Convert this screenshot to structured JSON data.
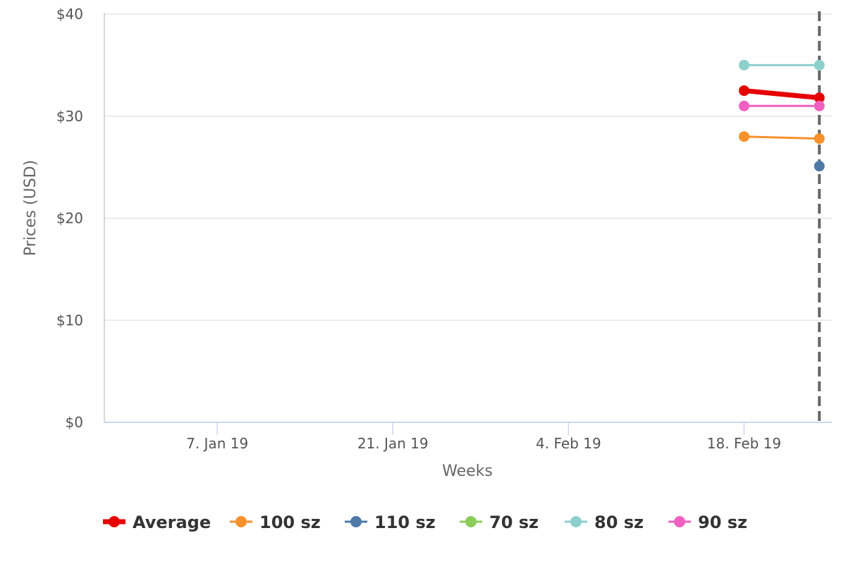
{
  "chart_data": {
    "type": "line",
    "title": "",
    "xlabel": "Weeks",
    "ylabel": "Prices (USD)",
    "x_ticks": [
      {
        "date": "2019-01-07",
        "label": "7. Jan 19"
      },
      {
        "date": "2019-01-21",
        "label": "21. Jan 19"
      },
      {
        "date": "2019-02-04",
        "label": "4. Feb 19"
      },
      {
        "date": "2019-02-18",
        "label": "18. Feb 19"
      }
    ],
    "y_ticks": [
      {
        "value": 0,
        "label": "$0"
      },
      {
        "value": 10,
        "label": "$10"
      },
      {
        "value": 20,
        "label": "$20"
      },
      {
        "value": 30,
        "label": "$30"
      },
      {
        "value": 40,
        "label": "$40"
      }
    ],
    "ylim": [
      0,
      40
    ],
    "xlim": [
      "2018-12-29",
      "2019-02-25"
    ],
    "grid": "horizontal",
    "current_marker_date": "2019-02-24",
    "legend_position": "bottom",
    "series": [
      {
        "name": "Average",
        "color": "#e60000",
        "data": [
          {
            "x": "2019-02-18",
            "y": 32.5
          },
          {
            "x": "2019-02-24",
            "y": 31.8
          }
        ]
      },
      {
        "name": "100 sz",
        "color": "#f7912c",
        "data": [
          {
            "x": "2019-02-18",
            "y": 28.0
          },
          {
            "x": "2019-02-24",
            "y": 27.8
          }
        ]
      },
      {
        "name": "110 sz",
        "color": "#4e79a7",
        "data": [
          {
            "x": "2019-02-24",
            "y": 25.1
          }
        ]
      },
      {
        "name": "70 sz",
        "color": "#8ccc5b",
        "data": []
      },
      {
        "name": "80 sz",
        "color": "#8ccfcb",
        "data": [
          {
            "x": "2019-02-18",
            "y": 35.0
          },
          {
            "x": "2019-02-24",
            "y": 35.0
          }
        ]
      },
      {
        "name": "90 sz",
        "color": "#f160c0",
        "data": [
          {
            "x": "2019-02-18",
            "y": 31.0
          },
          {
            "x": "2019-02-24",
            "y": 31.0
          }
        ]
      }
    ]
  }
}
